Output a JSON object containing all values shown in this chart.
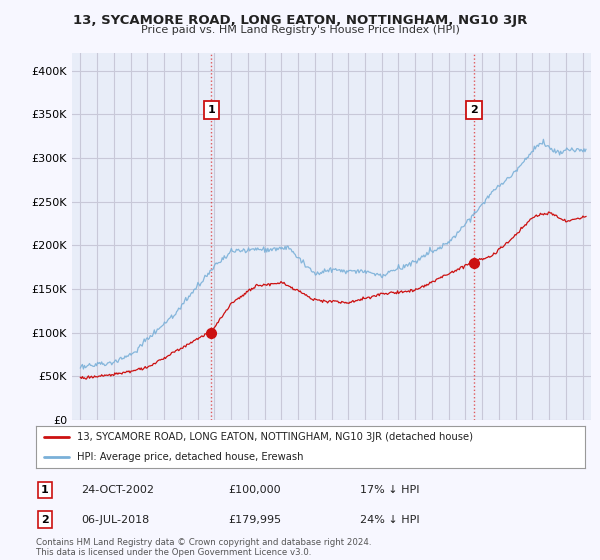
{
  "title": "13, SYCAMORE ROAD, LONG EATON, NOTTINGHAM, NG10 3JR",
  "subtitle": "Price paid vs. HM Land Registry's House Price Index (HPI)",
  "ylabel_ticks": [
    "£0",
    "£50K",
    "£100K",
    "£150K",
    "£200K",
    "£250K",
    "£300K",
    "£350K",
    "£400K"
  ],
  "ytick_values": [
    0,
    50000,
    100000,
    150000,
    200000,
    250000,
    300000,
    350000,
    400000
  ],
  "ylim": [
    0,
    420000
  ],
  "xlim_start": 1994.5,
  "xlim_end": 2025.5,
  "bg_color": "#f7f7ff",
  "plot_bg_color": "#e8edf8",
  "grid_color": "#c8c8d8",
  "hpi_color": "#7ab0d8",
  "price_color": "#cc1111",
  "transaction1_year": 2002.82,
  "transaction1_price": 100000,
  "transaction2_year": 2018.51,
  "transaction2_price": 179995,
  "legend_line1": "13, SYCAMORE ROAD, LONG EATON, NOTTINGHAM, NG10 3JR (detached house)",
  "legend_line2": "HPI: Average price, detached house, Erewash",
  "footer1": "Contains HM Land Registry data © Crown copyright and database right 2024.",
  "footer2": "This data is licensed under the Open Government Licence v3.0."
}
